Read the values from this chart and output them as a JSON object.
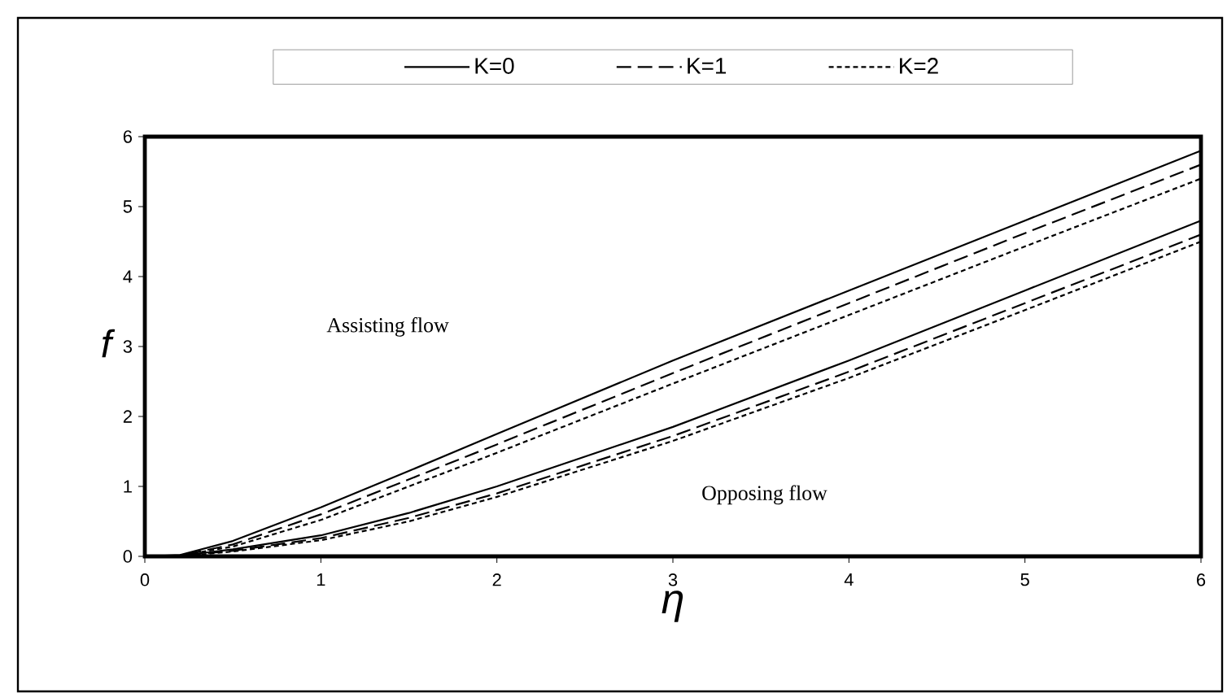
{
  "chart_data": {
    "type": "line",
    "xlabel": "η",
    "ylabel": "f",
    "x": [
      0,
      0.2,
      0.5,
      1,
      1.5,
      2,
      3,
      4,
      5,
      6
    ],
    "series": [
      {
        "name": "K=0",
        "color": "#000000",
        "line_style": "solid",
        "values": [
          0,
          0.02,
          0.22,
          0.7,
          1.22,
          1.75,
          2.8,
          3.8,
          4.8,
          5.8
        ]
      },
      {
        "name": "K=1",
        "color": "#000000",
        "line_style": "dashed",
        "values": [
          0,
          0.01,
          0.17,
          0.6,
          1.1,
          1.6,
          2.62,
          3.62,
          4.62,
          5.6
        ]
      },
      {
        "name": "K=2",
        "color": "#000000",
        "line_style": "dotted",
        "values": [
          0,
          0.01,
          0.14,
          0.52,
          1.0,
          1.48,
          2.47,
          3.45,
          4.43,
          5.4
        ]
      },
      {
        "color": "#000000",
        "line_style": "solid",
        "values": [
          0,
          0.01,
          0.1,
          0.3,
          0.62,
          1.0,
          1.85,
          2.8,
          3.8,
          4.8
        ]
      },
      {
        "color": "#000000",
        "line_style": "dashed",
        "values": [
          0,
          0.01,
          0.08,
          0.26,
          0.55,
          0.9,
          1.72,
          2.64,
          3.62,
          4.6
        ]
      },
      {
        "color": "#000000",
        "line_style": "dotted",
        "values": [
          0,
          0,
          0.07,
          0.23,
          0.5,
          0.85,
          1.65,
          2.55,
          3.52,
          4.5
        ]
      }
    ],
    "annotations": [
      "Assisting flow",
      "Opposing flow"
    ],
    "xlim": [
      0,
      6
    ],
    "xticks": [
      0,
      1,
      2,
      3,
      4,
      5,
      6
    ],
    "ylim": [
      0,
      6
    ],
    "yticks": [
      0,
      1,
      2,
      3,
      4,
      5,
      6
    ],
    "grid": false,
    "legend": "top",
    "marker": "none"
  }
}
